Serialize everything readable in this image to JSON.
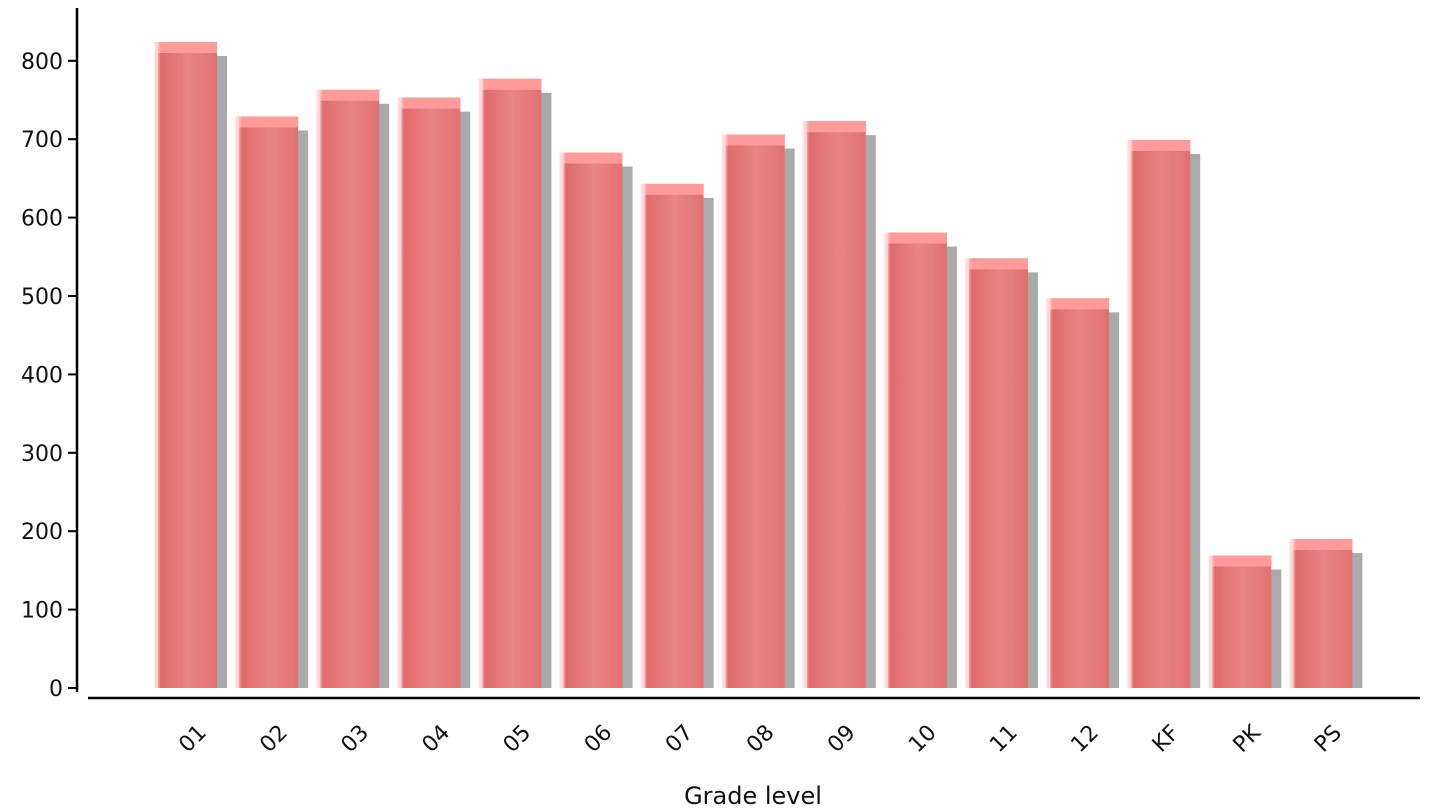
{
  "chart_data": {
    "type": "bar",
    "title": "",
    "xlabel": "Grade level",
    "ylabel": "",
    "categories": [
      "01",
      "02",
      "03",
      "04",
      "05",
      "06",
      "07",
      "08",
      "09",
      "10",
      "11",
      "12",
      "KF",
      "PK",
      "PS"
    ],
    "values": [
      824,
      729,
      763,
      753,
      777,
      683,
      643,
      706,
      723,
      581,
      548,
      497,
      699,
      169,
      190
    ],
    "ylim": [
      0,
      880
    ],
    "yticks": [
      0,
      100,
      200,
      300,
      400,
      500,
      600,
      700,
      800
    ],
    "ytick_labels": [
      "0",
      "100",
      "200",
      "300",
      "400",
      "500",
      "600",
      "700",
      "800"
    ],
    "grid": false,
    "legend": false,
    "colors": {
      "bar": "#e57373",
      "bar_light": "#e98686",
      "bar_top": "#ff9a9a",
      "highlight": "#ffd8d8",
      "shadow": "#aaaaaa",
      "axis": "#000000"
    }
  }
}
